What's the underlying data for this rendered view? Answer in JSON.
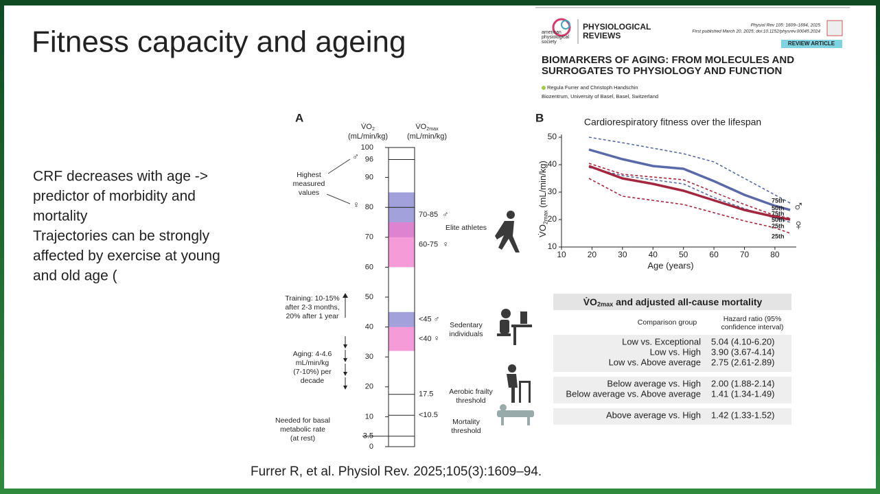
{
  "slide": {
    "title": "Fitness capacity and ageing",
    "bullets": [
      [
        "CRF decreases with age ->",
        "predictor of morbidity and",
        "mortality"
      ],
      [
        "Trajectories can be strongly",
        "affected by exercise at young",
        "and old age ("
      ]
    ],
    "citation": "Furrer R, et al. Physiol Rev. 2025;105(3):1609–94."
  },
  "journal": {
    "society": [
      "american",
      "physiological",
      "society"
    ],
    "name": [
      "PHYSIOLOGICAL",
      "REVIEWS"
    ],
    "ref": "Physiol Rev 105: 1609–1694, 2025",
    "published": "First published March 20, 2025; doi:10.1152/physrev.00045.2024",
    "kind": "REVIEW ARTICLE",
    "article_title": [
      "BIOMARKERS OF AGING: FROM MOLECULES AND",
      "SURROGATES TO PHYSIOLOGY AND FUNCTION"
    ],
    "authors": "Regula Furrer and Christoph Handschin",
    "affiliation": "Biozentrum, University of Basel, Basel, Switzerland"
  },
  "panel_a": {
    "label": "A",
    "col_left": {
      "main": "V̇O",
      "sub": "2",
      "unit": "(mL/min/kg)"
    },
    "col_right": {
      "main": "V̇O",
      "sub": "2max",
      "unit": "(mL/min/kg)"
    },
    "ylim": [
      0,
      100
    ],
    "yticks": [
      0,
      10,
      20,
      30,
      40,
      50,
      60,
      70,
      80,
      90,
      100
    ],
    "thresholds": [
      {
        "value": 96,
        "side": "left"
      },
      {
        "value": 80
      },
      {
        "value": 17.5,
        "side": "right"
      },
      {
        "value": 10.5,
        "label": "<10.5",
        "side": "right"
      },
      {
        "value": 3.5,
        "side": "left"
      }
    ],
    "bands": [
      {
        "label": "70-85",
        "symbol": "♂",
        "range": [
          70,
          85
        ],
        "color": "#8481cf"
      },
      {
        "label": "60-75",
        "symbol": "♀",
        "range": [
          60,
          75
        ],
        "color": "#f07acb"
      },
      {
        "label": "<45",
        "symbol": "♂",
        "range": [
          40,
          45
        ],
        "color": "#8481cf"
      },
      {
        "label": "<40",
        "symbol": "♀",
        "range": [
          32,
          40
        ],
        "color": "#f07acb"
      }
    ],
    "highest": {
      "lines": [
        "Highest",
        "measured",
        "values"
      ],
      "symbols": [
        "♂",
        "♀"
      ]
    },
    "training": [
      "Training: 10-15%",
      "after 2-3 months,",
      "20% after 1 year"
    ],
    "aging": [
      "Aging: 4-4.6",
      "mL/min/kg",
      "(7-10%) per",
      "decade"
    ],
    "basal": [
      "Needed for basal",
      "metabolic rate",
      "(at rest)"
    ],
    "groups": [
      [
        "Elite athletes"
      ],
      [
        "Sedentary",
        "individuals"
      ],
      [
        "Aerobic frailty",
        "threshold"
      ],
      [
        "Mortality",
        "threshold"
      ]
    ]
  },
  "panel_b": {
    "label": "B",
    "type": "line",
    "title": "Cardiorespiratory fitness over the lifespan",
    "x_label": "Age (years)",
    "y_label": {
      "main": "V̇O",
      "sub": "2max",
      "unit": " (mL/min/kg)"
    },
    "xlim": [
      10,
      87
    ],
    "xticks": [
      10,
      20,
      30,
      40,
      50,
      60,
      70,
      80
    ],
    "ylim": [
      10,
      51
    ],
    "yticks": [
      10,
      20,
      30,
      40,
      50
    ],
    "x": [
      19,
      30,
      40,
      50,
      60,
      70,
      80,
      85
    ],
    "sex_symbols": [
      {
        "symbol": "♂",
        "color": "#3fa7c3"
      },
      {
        "symbol": "♀",
        "color": "#d9648f"
      }
    ],
    "series": [
      {
        "name": "75th",
        "color": "#5a6aa8",
        "dashed": true,
        "values": [
          50,
          48,
          46,
          44,
          41,
          35,
          29,
          26
        ]
      },
      {
        "name": "50th",
        "color": "#5a6aa8",
        "dashed": false,
        "values": [
          45.5,
          42,
          39.5,
          38.5,
          34,
          29,
          25,
          23.5
        ]
      },
      {
        "name": "25th",
        "color": "#5a6aa8",
        "dashed": true,
        "values": [
          39,
          36,
          34.5,
          33,
          28,
          24,
          20.5,
          19
        ]
      },
      {
        "name": "75th",
        "color": "#a3283f",
        "dashed": true,
        "values": [
          40.5,
          36.5,
          35.5,
          34.5,
          30,
          25.5,
          21.5,
          20.5
        ]
      },
      {
        "name": "50th",
        "color": "#a3283f",
        "dashed": false,
        "values": [
          39.5,
          35,
          33,
          30.5,
          27,
          23.5,
          21,
          20
        ]
      },
      {
        "name": "25th",
        "color": "#a3283f",
        "dashed": true,
        "values": [
          35,
          28.5,
          27,
          25.5,
          22.5,
          19.5,
          17,
          15
        ]
      }
    ]
  },
  "table": {
    "title": {
      "main": "V̇O",
      "sub": "2max",
      "rest": " and adjusted all-cause mortality"
    },
    "columns": [
      "Comparison group",
      [
        "Hazard ratio (95%",
        "confidence interval)"
      ]
    ],
    "groups": [
      [
        [
          "Low vs. Exceptional",
          "5.04 (4.10-6.20)"
        ],
        [
          "Low vs. High",
          "3.90 (3.67-4.14)"
        ],
        [
          "Low vs. Above average",
          "2.75 (2.61-2.89)"
        ]
      ],
      [
        [
          "Below average vs. High",
          "2.00 (1.88-2.14)"
        ],
        [
          "Below average vs. Above average",
          "1.41 (1.34-1.49)"
        ]
      ],
      [
        [
          "Above average vs. High",
          "1.42 (1.33-1.52)"
        ]
      ]
    ]
  }
}
